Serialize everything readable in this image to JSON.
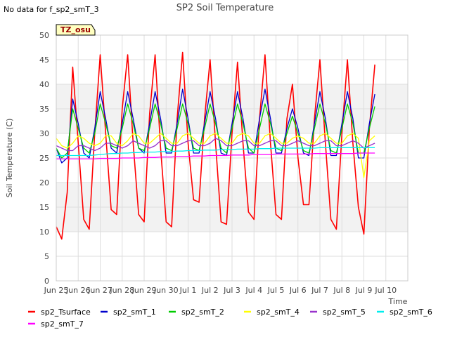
{
  "page": {
    "no_data_text": "No data for f_sp2_smT_3"
  },
  "chart_data": {
    "type": "line",
    "title": "SP2 Soil Temperature",
    "xlabel": "Time",
    "ylabel": "Soil Temperature (C)",
    "badge": "TZ_osu",
    "ylim": [
      0,
      50
    ],
    "yticks": [
      0,
      5,
      10,
      15,
      20,
      25,
      30,
      35,
      40,
      45,
      50
    ],
    "xlim": [
      0,
      16
    ],
    "xtick_labels": [
      "Jun 25",
      "Jun 26",
      "Jun 27",
      "Jun 28",
      "Jun 29",
      "Jun 30",
      "Jul 1",
      "Jul 2",
      "Jul 3",
      "Jul 4",
      "Jul 5",
      "Jul 6",
      "Jul 7",
      "Jul 8",
      "Jul 9",
      "Jul 10"
    ],
    "grid": true,
    "legend_position": "bottom",
    "x_days": [
      0.0,
      0.25,
      0.5,
      0.75,
      1.0,
      1.25,
      1.5,
      1.75,
      2.0,
      2.25,
      2.5,
      2.75,
      3.0,
      3.25,
      3.5,
      3.75,
      4.0,
      4.25,
      4.5,
      4.75,
      5.0,
      5.25,
      5.5,
      5.75,
      6.0,
      6.25,
      6.5,
      6.75,
      7.0,
      7.25,
      7.5,
      7.75,
      8.0,
      8.25,
      8.5,
      8.75,
      9.0,
      9.25,
      9.5,
      9.75,
      10.0,
      10.25,
      10.5,
      10.75,
      11.0,
      11.25,
      11.5,
      11.75,
      12.0,
      12.25,
      12.5,
      12.75,
      13.0,
      13.25,
      13.5,
      13.75,
      14.0,
      14.25,
      14.5
    ],
    "series": [
      {
        "name": "sp2_Tsurface",
        "color": "#ff0000",
        "values": [
          11.0,
          8.5,
          18,
          43.5,
          28,
          12.5,
          10.5,
          30,
          46,
          30,
          14.5,
          13.5,
          35,
          46,
          28,
          13.5,
          12,
          34,
          46,
          27,
          12,
          11,
          33,
          46.5,
          28,
          16.5,
          16,
          33,
          45,
          28,
          12,
          11.5,
          30,
          44.5,
          28,
          14,
          12.5,
          33,
          46,
          28,
          13.5,
          12.5,
          33,
          40,
          25,
          15.5,
          15.5,
          33,
          45,
          28,
          12.5,
          10.5,
          30,
          45,
          28,
          15,
          9.5,
          31,
          44
        ]
      },
      {
        "name": "sp2_smT_1",
        "color": "#0000cc",
        "values": [
          27,
          24,
          25,
          37,
          32,
          26,
          25,
          31,
          38.5,
          33,
          27,
          26,
          32,
          38.5,
          33,
          27,
          26,
          32,
          38.5,
          33,
          26,
          26,
          32,
          39,
          33,
          26,
          26,
          32,
          38.5,
          33,
          26,
          25.5,
          32,
          38.5,
          33,
          26,
          26,
          33,
          39,
          33,
          26,
          26,
          31,
          35,
          31,
          26,
          25.5,
          32,
          38.5,
          33,
          25.5,
          25.5,
          32,
          38.5,
          33,
          25,
          25,
          32,
          38
        ]
      },
      {
        "name": "sp2_smT_2",
        "color": "#00cc00",
        "values": [
          27,
          25,
          26,
          35,
          31,
          27,
          26,
          30,
          36,
          32,
          27.5,
          27,
          31,
          36,
          32,
          27,
          26.5,
          31,
          36,
          32,
          27,
          26.5,
          31,
          36,
          32,
          27,
          26.5,
          31,
          36,
          32,
          27,
          26,
          31,
          36,
          32,
          27,
          26,
          31,
          36,
          32,
          27,
          26.5,
          30,
          33.5,
          30,
          26.5,
          26,
          31,
          36,
          32,
          26.5,
          26,
          31,
          36,
          32,
          26,
          26,
          31,
          35.5
        ]
      },
      {
        "name": "sp2_smT_4",
        "color": "#ffff00",
        "values": [
          29,
          27.5,
          27,
          28,
          29.5,
          29,
          28,
          27.5,
          28,
          29.5,
          29.5,
          28,
          27.5,
          28.5,
          30,
          29.5,
          28,
          28,
          29,
          30,
          29,
          28,
          28,
          29.5,
          30,
          29,
          28,
          28,
          29.5,
          30,
          29,
          28,
          28,
          29.5,
          30,
          29.5,
          28,
          28,
          29.5,
          30,
          29,
          28,
          28,
          29,
          29.5,
          29,
          28,
          28,
          29.5,
          30,
          29,
          28,
          28,
          29.5,
          30,
          29,
          21,
          28.5,
          29.5
        ]
      },
      {
        "name": "sp2_smT_5",
        "color": "#9933cc",
        "values": [
          27.5,
          27,
          26.5,
          26.5,
          27.5,
          27.5,
          27,
          26.5,
          27,
          28,
          28,
          27.5,
          27,
          27.5,
          28.5,
          28,
          27.5,
          27,
          27.5,
          28.5,
          28.5,
          27.5,
          27.5,
          28,
          28.5,
          28.5,
          27.5,
          27.5,
          28,
          29,
          28.5,
          27.5,
          27.5,
          28,
          28.5,
          28.5,
          27.5,
          27.5,
          28,
          28.5,
          28.5,
          27.5,
          27.5,
          28,
          28.5,
          28,
          27.5,
          27.5,
          28,
          28.5,
          28.5,
          27.5,
          27.5,
          28,
          28.5,
          28,
          27,
          27.5,
          28
        ]
      },
      {
        "name": "sp2_smT_6",
        "color": "#00eeee",
        "values": [
          25.5,
          25.5,
          25.5,
          25.5,
          25.5,
          25.5,
          25.5,
          25.6,
          25.7,
          25.8,
          25.9,
          25.9,
          26,
          26,
          26.1,
          26.1,
          26.2,
          26.2,
          26.2,
          26.3,
          26.3,
          26.3,
          26.4,
          26.4,
          26.5,
          26.5,
          26.5,
          26.6,
          26.6,
          26.6,
          26.7,
          26.7,
          26.7,
          26.8,
          26.8,
          26.8,
          26.8,
          26.9,
          26.9,
          26.9,
          27,
          27,
          27,
          27,
          27,
          27,
          27,
          27,
          27.1,
          27.1,
          27.1,
          27.1,
          27.1,
          27.1,
          27.1,
          27.1,
          27.1,
          27.1,
          27.1
        ]
      },
      {
        "name": "sp2_smT_7",
        "color": "#ff00ff",
        "values": [
          24.8,
          24.8,
          24.8,
          24.8,
          24.8,
          24.8,
          24.8,
          24.8,
          24.9,
          24.9,
          24.9,
          24.9,
          25,
          25,
          25,
          25,
          25.1,
          25.1,
          25.1,
          25.2,
          25.2,
          25.2,
          25.3,
          25.3,
          25.3,
          25.4,
          25.4,
          25.4,
          25.5,
          25.5,
          25.5,
          25.5,
          25.6,
          25.6,
          25.6,
          25.6,
          25.7,
          25.7,
          25.7,
          25.7,
          25.8,
          25.8,
          25.8,
          25.8,
          25.8,
          25.8,
          25.8,
          25.9,
          25.9,
          25.9,
          25.9,
          25.9,
          25.9,
          25.9,
          25.9,
          26,
          26,
          26,
          26
        ]
      }
    ]
  }
}
